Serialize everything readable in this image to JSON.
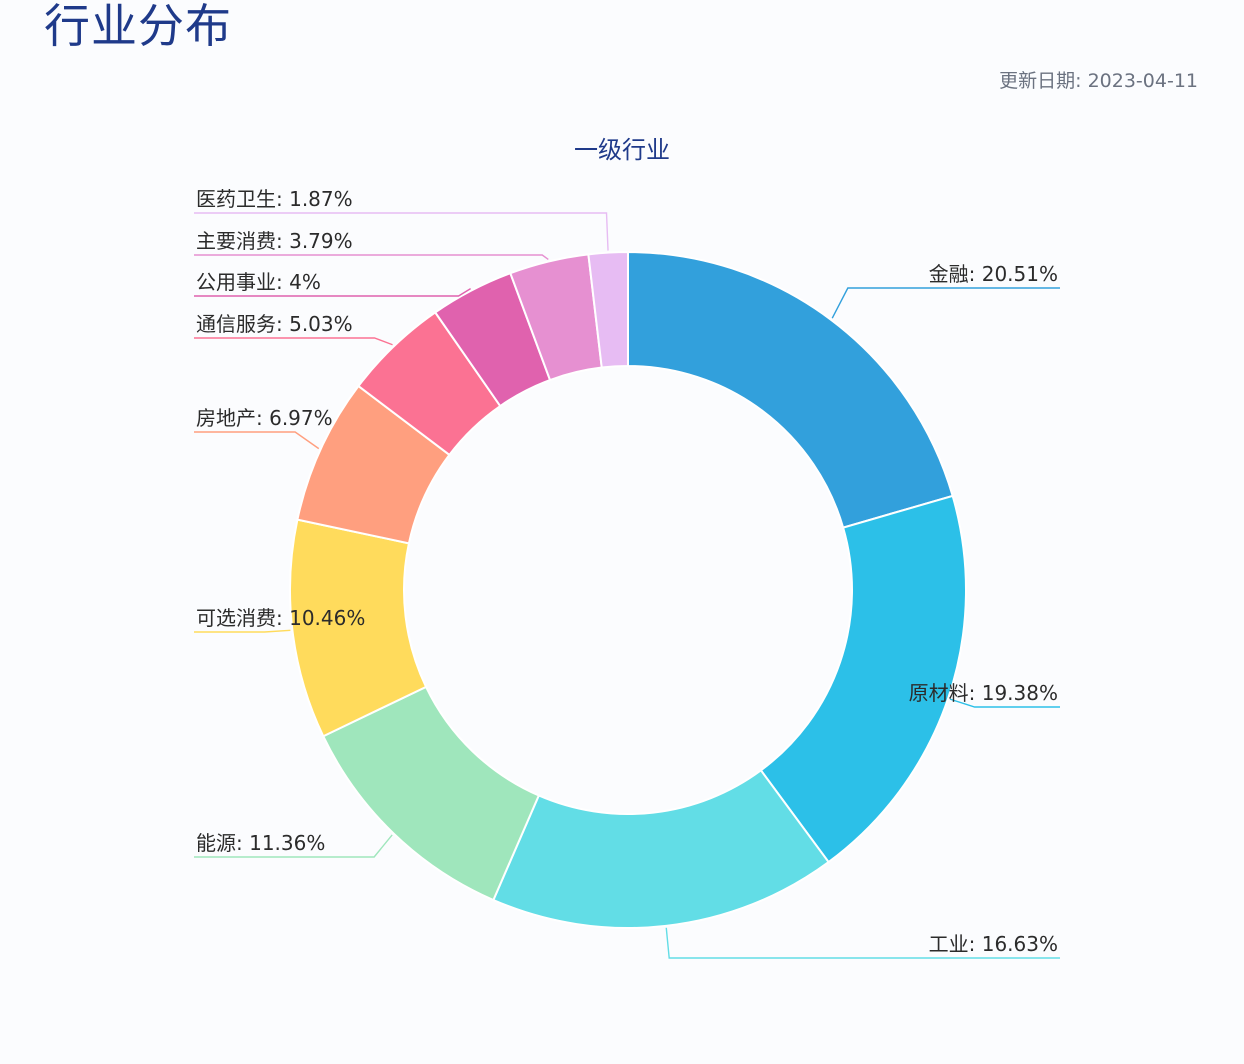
{
  "header": {
    "title": "行业分布",
    "update_label": "更新日期:",
    "update_date": "2023-04-11"
  },
  "chart_data": {
    "type": "pie",
    "variant": "donut",
    "title": "一级行业",
    "unit": "%",
    "legend": "none",
    "slices": [
      {
        "label": "金融",
        "value": 20.51,
        "display": "20.51%",
        "color": "#32a0dc"
      },
      {
        "label": "原材料",
        "value": 19.38,
        "display": "19.38%",
        "color": "#2cc0e8"
      },
      {
        "label": "工业",
        "value": 16.63,
        "display": "16.63%",
        "color": "#62dde6"
      },
      {
        "label": "能源",
        "value": 11.36,
        "display": "11.36%",
        "color": "#9fe6bc"
      },
      {
        "label": "可选消费",
        "value": 10.46,
        "display": "10.46%",
        "color": "#ffdb5c"
      },
      {
        "label": "房地产",
        "value": 6.97,
        "display": "6.97%",
        "color": "#ff9f7f"
      },
      {
        "label": "通信服务",
        "value": 5.03,
        "display": "5.03%",
        "color": "#fb7293"
      },
      {
        "label": "公用事业",
        "value": 4,
        "display": "4%",
        "color": "#e062ae"
      },
      {
        "label": "主要消费",
        "value": 3.79,
        "display": "3.79%",
        "color": "#e690d1"
      },
      {
        "label": "医药卫生",
        "value": 1.87,
        "display": "1.87%",
        "color": "#e7bcf3"
      }
    ]
  }
}
